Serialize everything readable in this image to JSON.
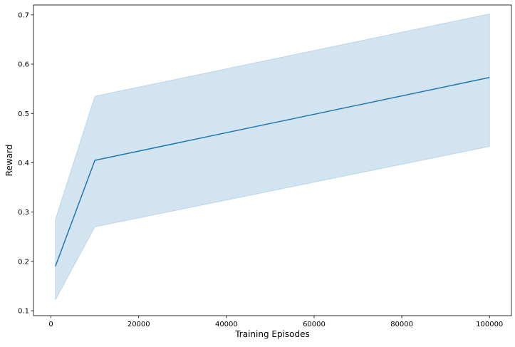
{
  "chart_data": {
    "type": "line",
    "title": "",
    "xlabel": "Training Episodes",
    "ylabel": "Reward",
    "xlim": [
      -4000,
      105000
    ],
    "ylim": [
      0.09,
      0.72
    ],
    "xticks": [
      0,
      20000,
      40000,
      60000,
      80000,
      100000
    ],
    "xtick_labels": [
      "0",
      "20000",
      "40000",
      "60000",
      "80000",
      "100000"
    ],
    "yticks": [
      0.1,
      0.2,
      0.3,
      0.4,
      0.5,
      0.6,
      0.7
    ],
    "ytick_labels": [
      "0.1",
      "0.2",
      "0.3",
      "0.4",
      "0.5",
      "0.6",
      "0.7"
    ],
    "grid": false,
    "legend": "none",
    "series": [
      {
        "x": [
          1000,
          10000,
          100000
        ],
        "y": [
          0.19,
          0.405,
          0.573
        ],
        "y_lower": [
          0.122,
          0.27,
          0.433
        ],
        "y_upper": [
          0.285,
          0.535,
          0.702
        ],
        "color": "#1f77b4",
        "band_color": "#1f77b4"
      }
    ]
  }
}
